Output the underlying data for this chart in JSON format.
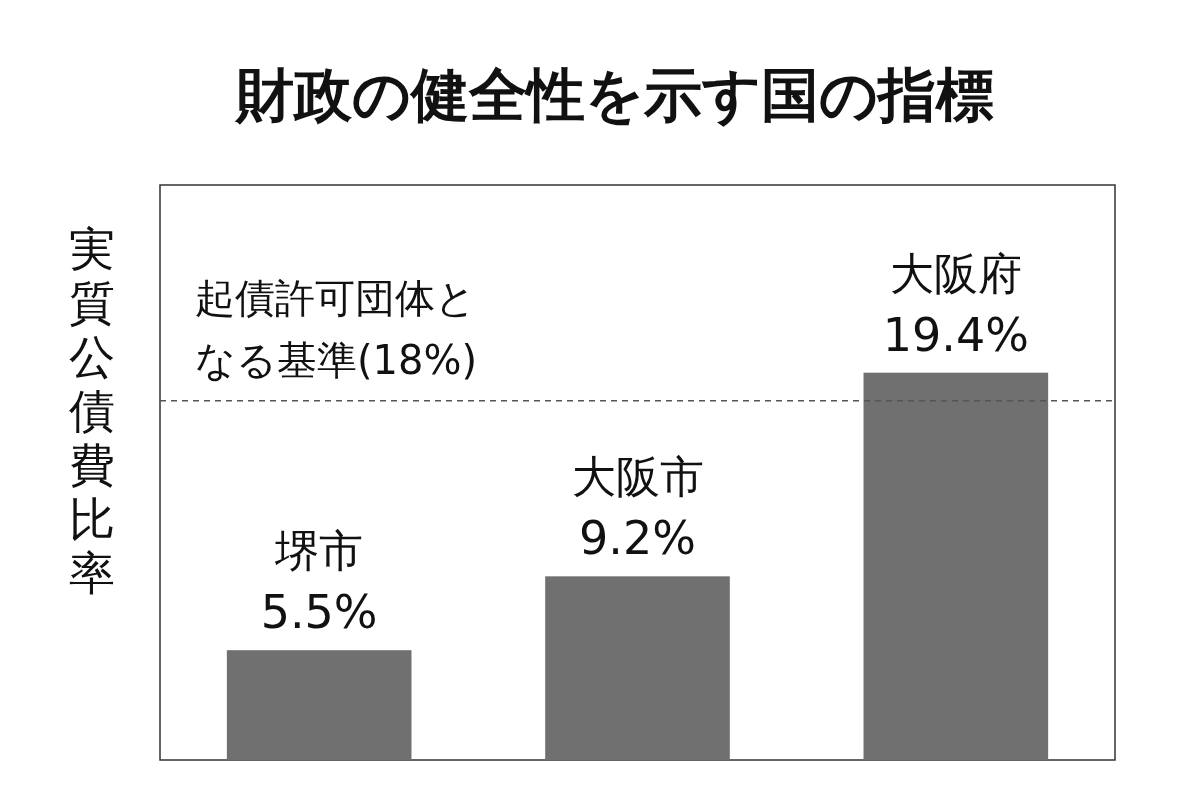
{
  "chart_data": {
    "type": "bar",
    "title": "財政の健全性を示す国の指標",
    "ylabel": "実質公債費比率",
    "categories": [
      "堺市",
      "大阪市",
      "大阪府"
    ],
    "values": [
      5.5,
      9.2,
      19.4
    ],
    "value_labels": [
      "5.5%",
      "9.2%",
      "19.4%"
    ],
    "color": "#707070",
    "ylim": [
      0,
      28.8
    ],
    "tick_labels": "x",
    "ref_lines": [
      {
        "axis": "y",
        "value": 18,
        "label": "起債許可団体となる基準(18%)",
        "line_style": "dashed",
        "color": "#555555"
      }
    ]
  }
}
